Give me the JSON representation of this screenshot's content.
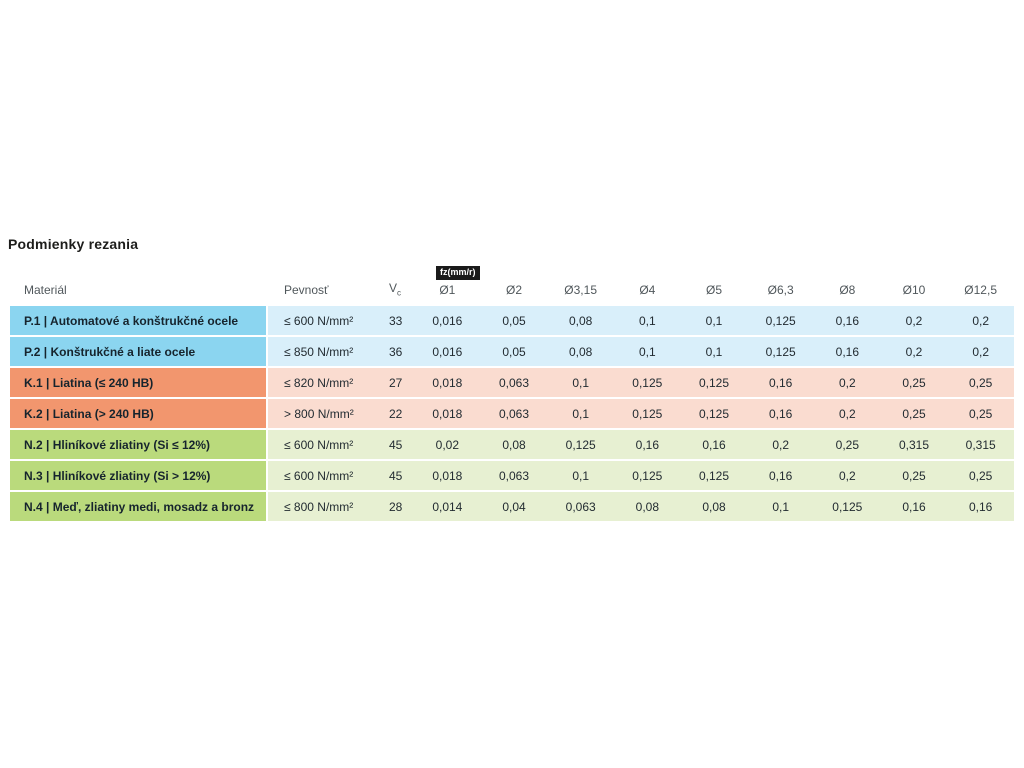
{
  "page": {
    "title": "Podmienky rezania"
  },
  "table": {
    "headers": {
      "material": "Materiál",
      "strength": "Pevnosť",
      "vc": "V",
      "vc_sub": "c",
      "fz_badge": "fz(mm/r)",
      "diameters": [
        "Ø1",
        "Ø2",
        "Ø3,15",
        "Ø4",
        "Ø5",
        "Ø6,3",
        "Ø8",
        "Ø10",
        "Ø12,5"
      ]
    },
    "rows": [
      {
        "group": "P",
        "material": "P.1 | Automatové a konštrukčné ocele",
        "strength": "≤ 600 N/mm²",
        "vc": "33",
        "values": [
          "0,016",
          "0,05",
          "0,08",
          "0,1",
          "0,1",
          "0,125",
          "0,16",
          "0,2",
          "0,2"
        ]
      },
      {
        "group": "P",
        "material": "P.2 | Konštrukčné a liate ocele",
        "strength": "≤ 850 N/mm²",
        "vc": "36",
        "values": [
          "0,016",
          "0,05",
          "0,08",
          "0,1",
          "0,1",
          "0,125",
          "0,16",
          "0,2",
          "0,2"
        ]
      },
      {
        "group": "K",
        "material": "K.1 | Liatina (≤ 240 HB)",
        "strength": "≤ 820 N/mm²",
        "vc": "27",
        "values": [
          "0,018",
          "0,063",
          "0,1",
          "0,125",
          "0,125",
          "0,16",
          "0,2",
          "0,25",
          "0,25"
        ]
      },
      {
        "group": "K",
        "material": "K.2 | Liatina (> 240 HB)",
        "strength": "> 800 N/mm²",
        "vc": "22",
        "values": [
          "0,018",
          "0,063",
          "0,1",
          "0,125",
          "0,125",
          "0,16",
          "0,2",
          "0,25",
          "0,25"
        ]
      },
      {
        "group": "N",
        "material": "N.2 | Hliníkové zliatiny (Si ≤ 12%)",
        "strength": "≤ 600 N/mm²",
        "vc": "45",
        "values": [
          "0,02",
          "0,08",
          "0,125",
          "0,16",
          "0,16",
          "0,2",
          "0,25",
          "0,315",
          "0,315"
        ]
      },
      {
        "group": "N",
        "material": "N.3 | Hliníkové zliatiny (Si > 12%)",
        "strength": "≤ 600 N/mm²",
        "vc": "45",
        "values": [
          "0,018",
          "0,063",
          "0,1",
          "0,125",
          "0,125",
          "0,16",
          "0,2",
          "0,25",
          "0,25"
        ]
      },
      {
        "group": "N",
        "material": "N.4 | Meď, zliatiny medi, mosadz a bronz",
        "strength": "≤ 800 N/mm²",
        "vc": "28",
        "values": [
          "0,014",
          "0,04",
          "0,063",
          "0,08",
          "0,08",
          "0,1",
          "0,125",
          "0,16",
          "0,16"
        ]
      }
    ],
    "colors": {
      "P": {
        "label_bg": "#8bd5f0",
        "row_bg": "#d9effa"
      },
      "K": {
        "label_bg": "#f2966e",
        "row_bg": "#fadcd0"
      },
      "N": {
        "label_bg": "#bada7c",
        "row_bg": "#e7f0d2"
      },
      "badge_bg": "#1a1a1a",
      "badge_text": "#ffffff",
      "header_text": "#50575b",
      "cell_text": "#222b31"
    }
  }
}
